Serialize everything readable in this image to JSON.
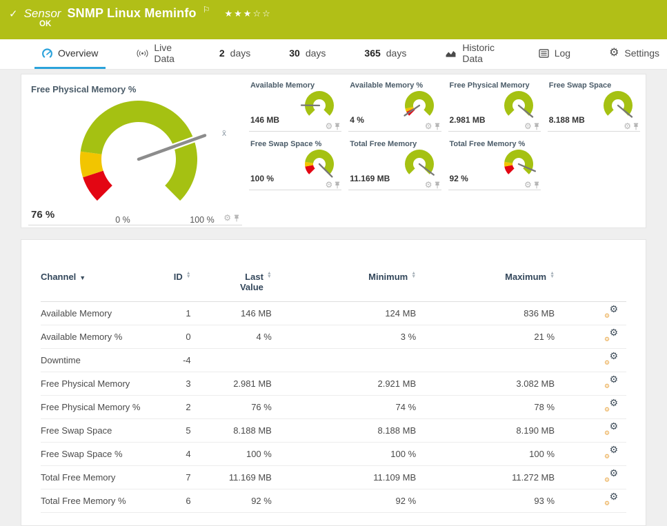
{
  "header": {
    "status_icon": "✓",
    "kind": "Sensor",
    "title": "SNMP Linux Meminfo",
    "flag": "⚐",
    "status": "OK",
    "priority": {
      "filled": 3,
      "total": 5
    },
    "bar_color": "#b1bf17"
  },
  "tabs": [
    {
      "id": "overview",
      "label": "Overview",
      "icon": "gauge-icon",
      "active": true
    },
    {
      "id": "live-data",
      "label": "Live Data",
      "icon": "broadcast-icon",
      "active": false
    },
    {
      "id": "2-days",
      "num": "2",
      "label": "days",
      "active": false
    },
    {
      "id": "30-days",
      "num": "30",
      "label": "days",
      "active": false
    },
    {
      "id": "365-days",
      "num": "365",
      "label": "days",
      "active": false
    },
    {
      "id": "historic-data",
      "label": "Historic Data",
      "icon": "chart-icon",
      "active": false
    },
    {
      "id": "log",
      "label": "Log",
      "icon": "log-icon",
      "active": false
    },
    {
      "id": "settings",
      "label": "Settings",
      "icon": "gear-icon",
      "active": false
    }
  ],
  "colors": {
    "ok_green": "#a5c112",
    "warn_yellow": "#f2c500",
    "error_red": "#e30613",
    "needle_gray": "#8c8c8c",
    "tab_accent_blue": "#2aa2db"
  },
  "big_gauge": {
    "title": "Free Physical Memory %",
    "value": "76 %",
    "scale_min": "0 %",
    "scale_max": "100 %",
    "needle": 0.76,
    "avg_marker": "x̄",
    "segments": [
      {
        "from": 0,
        "to": 0.1,
        "color": "#e30613"
      },
      {
        "from": 0.1,
        "to": 0.195,
        "color": "#f2c500"
      },
      {
        "from": 0.195,
        "to": 1,
        "color": "#a5c112"
      }
    ]
  },
  "small_gauges": [
    {
      "title": "Available Memory",
      "value": "146 MB",
      "needle": 0.17,
      "segments": [
        {
          "from": 0,
          "to": 1,
          "color": "#a5c112"
        }
      ]
    },
    {
      "title": "Available Memory %",
      "value": "4 %",
      "needle": 0.04,
      "segments": [
        {
          "from": 0,
          "to": 0.07,
          "color": "#e30613"
        },
        {
          "from": 0.07,
          "to": 0.12,
          "color": "#f2c500"
        },
        {
          "from": 0.12,
          "to": 1,
          "color": "#a5c112"
        }
      ]
    },
    {
      "title": "Free Physical Memory",
      "value": "2.981 MB",
      "needle": 0.98,
      "segments": [
        {
          "from": 0,
          "to": 1,
          "color": "#a5c112"
        }
      ]
    },
    {
      "title": "Free Swap Space",
      "value": "8.188 MB",
      "needle": 0.98,
      "segments": [
        {
          "from": 0,
          "to": 1,
          "color": "#a5c112"
        }
      ]
    },
    {
      "title": "Free Swap Space %",
      "value": "100 %",
      "needle": 1.0,
      "segments": [
        {
          "from": 0,
          "to": 0.13,
          "color": "#e30613"
        },
        {
          "from": 0.13,
          "to": 0.2,
          "color": "#f2c500"
        },
        {
          "from": 0.2,
          "to": 1,
          "color": "#a5c112"
        }
      ]
    },
    {
      "title": "Total Free Memory",
      "value": "11.169 MB",
      "needle": 0.97,
      "segments": [
        {
          "from": 0,
          "to": 1,
          "color": "#a5c112"
        }
      ]
    },
    {
      "title": "Total Free Memory %",
      "value": "92 %",
      "needle": 0.92,
      "segments": [
        {
          "from": 0,
          "to": 0.13,
          "color": "#e30613"
        },
        {
          "from": 0.13,
          "to": 0.2,
          "color": "#f2c500"
        },
        {
          "from": 0.2,
          "to": 1,
          "color": "#a5c112"
        }
      ]
    }
  ],
  "table": {
    "columns": [
      "Channel",
      "ID",
      "Last Value",
      "Minimum",
      "Maximum"
    ],
    "sorted_by": "Channel",
    "rows": [
      {
        "channel": "Available Memory",
        "id": "1",
        "last": "146 MB",
        "min": "124 MB",
        "max": "836 MB"
      },
      {
        "channel": "Available Memory %",
        "id": "0",
        "last": "4 %",
        "min": "3 %",
        "max": "21 %"
      },
      {
        "channel": "Downtime",
        "id": "-4",
        "last": "",
        "min": "",
        "max": ""
      },
      {
        "channel": "Free Physical Memory",
        "id": "3",
        "last": "2.981 MB",
        "min": "2.921 MB",
        "max": "3.082 MB"
      },
      {
        "channel": "Free Physical Memory %",
        "id": "2",
        "last": "76 %",
        "min": "74 %",
        "max": "78 %"
      },
      {
        "channel": "Free Swap Space",
        "id": "5",
        "last": "8.188 MB",
        "min": "8.188 MB",
        "max": "8.190 MB"
      },
      {
        "channel": "Free Swap Space %",
        "id": "4",
        "last": "100 %",
        "min": "100 %",
        "max": "100 %"
      },
      {
        "channel": "Total Free Memory",
        "id": "7",
        "last": "11.169 MB",
        "min": "11.109 MB",
        "max": "11.272 MB"
      },
      {
        "channel": "Total Free Memory %",
        "id": "6",
        "last": "92 %",
        "min": "92 %",
        "max": "93 %"
      }
    ]
  }
}
